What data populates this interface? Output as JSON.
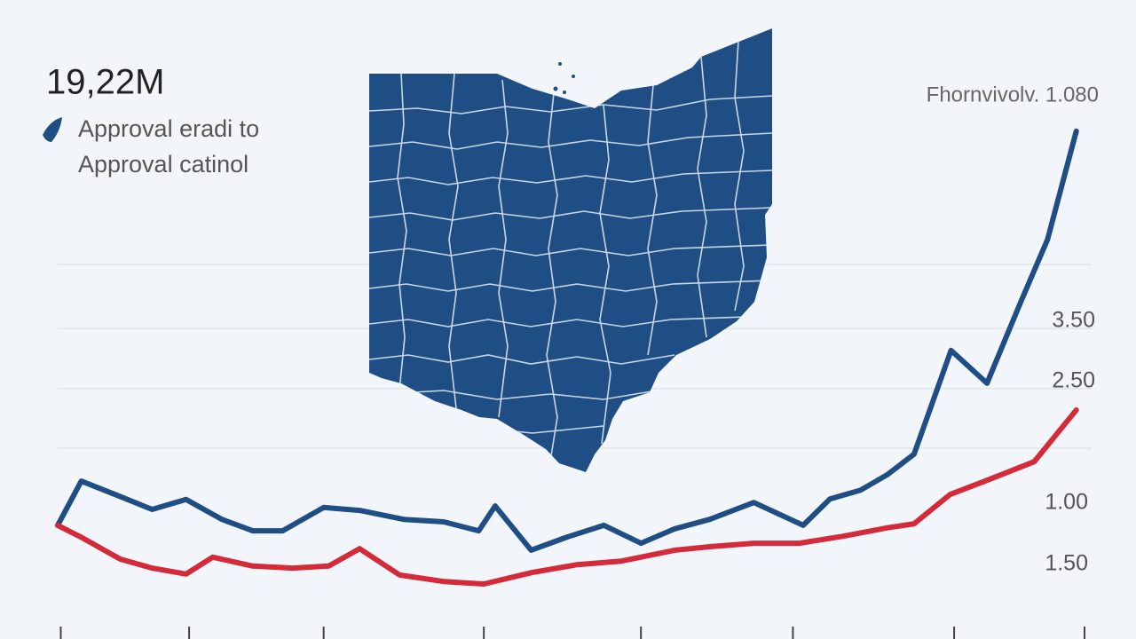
{
  "chart_data": {
    "type": "line",
    "title": "19,22M",
    "corner_label": "Fhornvivolv. 1.080",
    "right_labels": [
      "3.50",
      "2.50",
      "1.00",
      "1.50"
    ],
    "xlim": [
      0,
      100
    ],
    "ylim": [
      0,
      10
    ],
    "xticks": [
      0.3,
      12.8,
      25.9,
      41.5,
      56.8,
      71.6,
      87.3,
      100
    ],
    "grid_lines": [
      7.18,
      5.89,
      4.68,
      3.48
    ],
    "grid": true,
    "series": [
      {
        "name": "Approval eradi to",
        "color": "#1f4e85",
        "x": [
          0,
          2.3,
          5.6,
          9.2,
          12.5,
          16.0,
          19.0,
          21.9,
          25.9,
          29.4,
          33.7,
          37.6,
          41.0,
          42.6,
          46.1,
          49.7,
          53.2,
          56.8,
          60.1,
          63.5,
          67.8,
          72.6,
          75.2,
          78.2,
          80.8,
          83.4,
          87.0,
          90.5,
          93.8,
          96.4,
          99.2
        ],
        "values": [
          1.93,
          2.82,
          2.55,
          2.25,
          2.45,
          2.05,
          1.82,
          1.82,
          2.29,
          2.23,
          2.05,
          2.0,
          1.82,
          2.32,
          1.43,
          1.7,
          1.93,
          1.57,
          1.86,
          2.05,
          2.39,
          1.93,
          2.46,
          2.64,
          2.95,
          3.36,
          5.45,
          4.79,
          6.43,
          7.68,
          9.86
        ]
      },
      {
        "name": "Approval catinol",
        "color": "#d42a3a",
        "x": [
          0,
          2.2,
          6.1,
          9.2,
          12.5,
          15.1,
          19.0,
          22.9,
          26.4,
          29.4,
          33.3,
          37.6,
          41.5,
          46.2,
          50.6,
          54.9,
          60.1,
          63.5,
          67.8,
          72.2,
          76.5,
          80.8,
          83.4,
          86.9,
          90.3,
          95.1,
          99.2
        ],
        "values": [
          1.93,
          1.7,
          1.25,
          1.07,
          0.95,
          1.29,
          1.11,
          1.07,
          1.11,
          1.46,
          0.93,
          0.8,
          0.75,
          0.98,
          1.14,
          1.21,
          1.43,
          1.5,
          1.57,
          1.57,
          1.71,
          1.88,
          1.96,
          2.55,
          2.82,
          3.21,
          4.25
        ]
      }
    ]
  }
}
